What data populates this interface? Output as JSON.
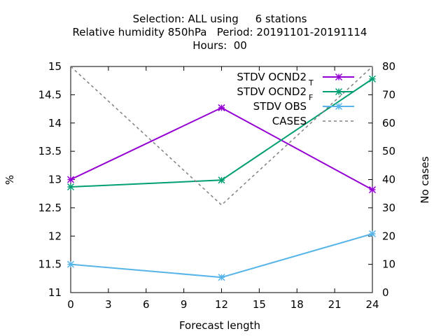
{
  "chart_data": {
    "type": "line",
    "title_lines": [
      "Selection: ALL using     6 stations",
      "Relative humidity 850hPa   Period: 20191101-20191114",
      "Hours:  00"
    ],
    "xlabel": "Forecast length",
    "ylabel": "%",
    "y2label": "No cases",
    "xlim": [
      0,
      24
    ],
    "xticks": [
      0,
      3,
      6,
      9,
      12,
      15,
      18,
      21,
      24
    ],
    "ylim": [
      11,
      15
    ],
    "yticks": [
      11,
      11.5,
      12,
      12.5,
      13,
      13.5,
      14,
      14.5,
      15
    ],
    "y2lim": [
      0,
      80
    ],
    "y2ticks": [
      0,
      10,
      20,
      30,
      40,
      50,
      60,
      70,
      80
    ],
    "grid": false,
    "legend_position": "top-right",
    "series": [
      {
        "name": "STDV OCND2",
        "subscript": "T",
        "color": "#9400d3",
        "axis": "left",
        "dash": false,
        "x": [
          0,
          12,
          24
        ],
        "y": [
          13.0,
          14.27,
          12.82
        ]
      },
      {
        "name": "STDV OCND2",
        "subscript": "F",
        "color": "#009e73",
        "axis": "left",
        "dash": false,
        "x": [
          0,
          12,
          24
        ],
        "y": [
          12.87,
          12.99,
          14.78
        ]
      },
      {
        "name": "STDV OBS",
        "subscript": "",
        "color": "#56b4e9",
        "axis": "left",
        "dash": false,
        "x": [
          0,
          12,
          24
        ],
        "y": [
          11.5,
          11.27,
          12.04
        ]
      },
      {
        "name": "CASES",
        "subscript": "",
        "color": "#808080",
        "axis": "right",
        "dash": true,
        "x": [
          0,
          12,
          24
        ],
        "y": [
          80,
          31,
          80
        ]
      }
    ]
  }
}
